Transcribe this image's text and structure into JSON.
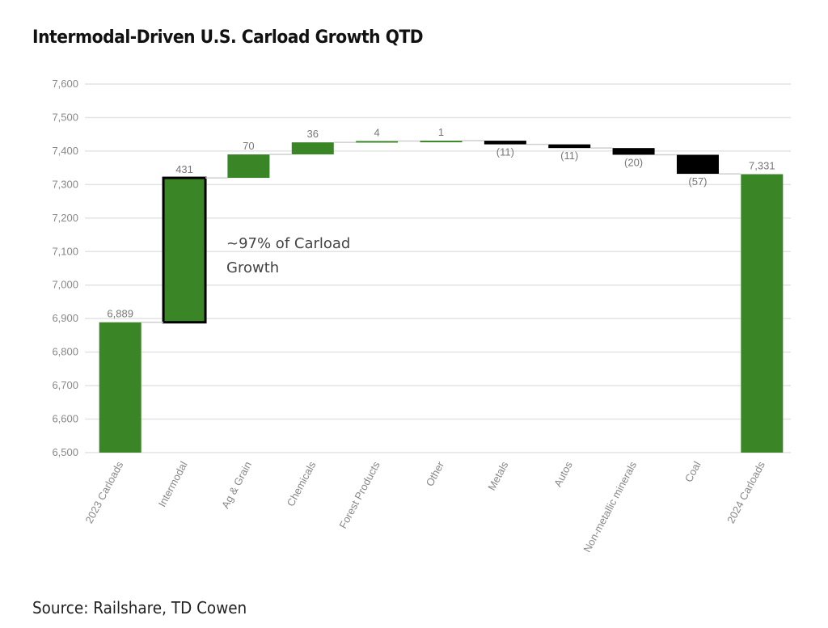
{
  "chart_data": {
    "type": "waterfall",
    "title": "Intermodal-Driven U.S. Carload Growth QTD",
    "categories": [
      "2023 Carloads",
      "Intermodal",
      "Ag & Grain",
      "Chemicals",
      "Forest Products",
      "Other",
      "Metals",
      "Autos",
      "Non-metallic minerals",
      "Coal",
      "2024 Carloads"
    ],
    "values": [
      6889,
      431,
      70,
      36,
      4,
      1,
      -11,
      -11,
      -20,
      -57,
      7331
    ],
    "kinds": [
      "total",
      "delta",
      "delta",
      "delta",
      "delta",
      "delta",
      "delta",
      "delta",
      "delta",
      "delta",
      "total"
    ],
    "data_labels": [
      "6,889",
      "431",
      "70",
      "36",
      "4",
      "1",
      "(11)",
      "(11)",
      "(20)",
      "(57)",
      "7,331"
    ],
    "ylim": [
      6500,
      7600
    ],
    "yticks": [
      "6,500",
      "6,600",
      "6,700",
      "6,800",
      "6,900",
      "7,000",
      "7,100",
      "7,200",
      "7,300",
      "7,400",
      "7,500",
      "7,600"
    ],
    "ytick_values": [
      6500,
      6600,
      6700,
      6800,
      6900,
      7000,
      7100,
      7200,
      7300,
      7400,
      7500,
      7600
    ],
    "grid": true,
    "colors": {
      "increase": "#3a8526",
      "decrease": "#000000",
      "total": "#3a8526",
      "highlight_border": "#000000"
    },
    "annotation": "~97% of Carload Growth",
    "annotation_lines": [
      "~97% of Carload",
      "Growth"
    ],
    "highlighted_category": "Intermodal"
  },
  "source": "Source: Railshare, TD Cowen"
}
